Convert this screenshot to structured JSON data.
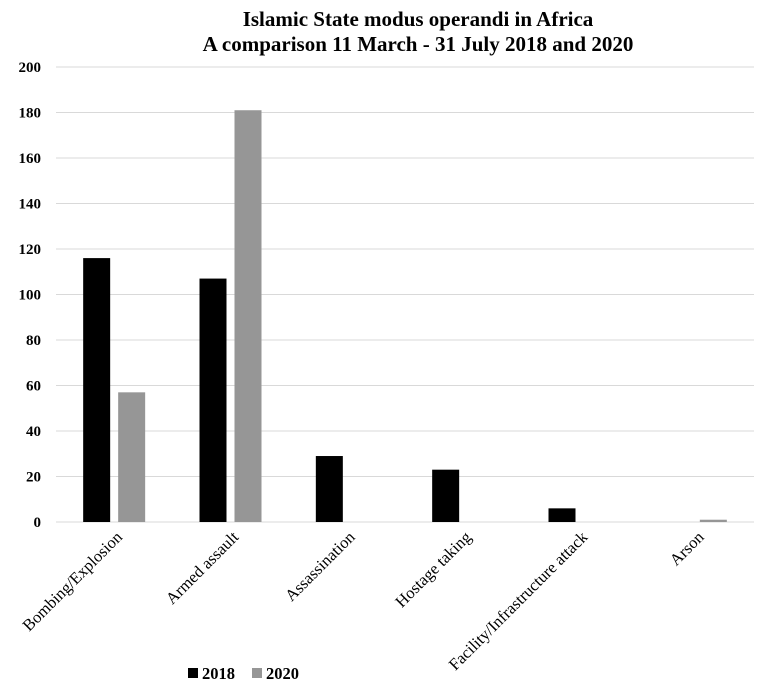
{
  "chart_data": {
    "type": "bar",
    "title": "Islamic State modus operandi in Africa",
    "subtitle": "A comparison 11 March - 31 July 2018 and 2020",
    "xlabel": "",
    "ylabel": "",
    "ylim": [
      0,
      200
    ],
    "yticks": [
      0,
      20,
      40,
      60,
      80,
      100,
      120,
      140,
      160,
      180,
      200
    ],
    "grid": true,
    "legend_position": "bottom-left",
    "categories": [
      "Bombing/Explosion",
      "Armed assault",
      "Assassination",
      "Hostage taking",
      "Facility/Infrastructure attack",
      "Arson"
    ],
    "series": [
      {
        "name": "2018",
        "color": "#000000",
        "values": [
          116,
          107,
          29,
          23,
          6,
          0
        ]
      },
      {
        "name": "2020",
        "color": "#969696",
        "values": [
          57,
          181,
          0,
          0,
          0,
          1
        ]
      }
    ]
  }
}
